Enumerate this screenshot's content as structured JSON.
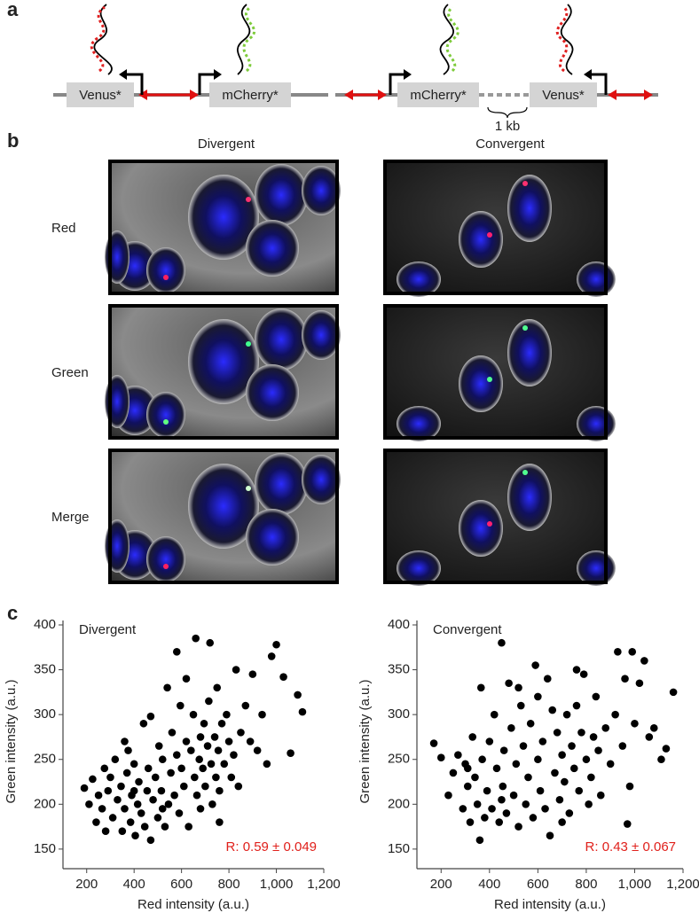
{
  "panel_labels": [
    "a",
    "b",
    "c"
  ],
  "diagram": {
    "divergent": [
      "Venus*",
      "mCherry*"
    ],
    "convergent": [
      "mCherry*",
      "Venus*"
    ],
    "spacer": "1 kb"
  },
  "images": {
    "columns": [
      "Divergent",
      "Convergent"
    ],
    "rows": [
      "Red",
      "Green",
      "Merge"
    ]
  },
  "chart_data": [
    {
      "type": "scatter",
      "title": "Divergent",
      "x_label": "Red intensity (a.u.)",
      "y_label": "Green intensity (a.u.)",
      "color": "#000000",
      "annotation": "R: 0.59 ± 0.049",
      "annotation_color": "#e0201b",
      "xlim": [
        100,
        1200
      ],
      "xticks": [
        200,
        400,
        600,
        800,
        {
          "value": 1000,
          "label": "1,000"
        },
        {
          "value": 1200,
          "label": "1,200"
        }
      ],
      "ylim": [
        140,
        400
      ],
      "yticks": [
        150,
        200,
        250,
        300,
        350,
        400
      ],
      "x": [
        190,
        210,
        225,
        240,
        250,
        265,
        275,
        290,
        300,
        310,
        320,
        330,
        345,
        350,
        360,
        370,
        375,
        385,
        390,
        400,
        405,
        415,
        420,
        430,
        440,
        445,
        455,
        460,
        470,
        480,
        490,
        500,
        505,
        515,
        520,
        530,
        540,
        545,
        555,
        560,
        570,
        580,
        590,
        595,
        600,
        610,
        620,
        630,
        640,
        650,
        655,
        660,
        665,
        675,
        680,
        690,
        695,
        700,
        710,
        715,
        720,
        725,
        730,
        740,
        745,
        750,
        755,
        760,
        770,
        780,
        790,
        800,
        810,
        820,
        830,
        840,
        850,
        870,
        890,
        900,
        920,
        940,
        960,
        980,
        1000,
        1030,
        1060,
        1090,
        1110,
        470,
        360,
        280,
        620,
        580,
        760,
        400,
        520,
        680
      ],
      "values": [
        218,
        200,
        228,
        180,
        210,
        195,
        240,
        215,
        230,
        185,
        250,
        205,
        220,
        170,
        195,
        235,
        260,
        180,
        210,
        245,
        165,
        200,
        225,
        190,
        290,
        175,
        215,
        240,
        160,
        205,
        230,
        185,
        265,
        215,
        250,
        175,
        330,
        200,
        235,
        280,
        210,
        255,
        190,
        310,
        240,
        220,
        270,
        175,
        260,
        300,
        230,
        385,
        210,
        250,
        275,
        240,
        290,
        220,
        265,
        315,
        380,
        245,
        200,
        275,
        230,
        330,
        260,
        215,
        290,
        245,
        300,
        270,
        230,
        255,
        350,
        220,
        280,
        310,
        270,
        345,
        260,
        300,
        245,
        365,
        378,
        342,
        257,
        322,
        303,
        298,
        270,
        170,
        340,
        370,
        180,
        215,
        195,
        195
      ]
    },
    {
      "type": "scatter",
      "title": "Convergent",
      "x_label": "Red intensity (a.u.)",
      "y_label": "Green intensity (a.u.)",
      "color": "#000000",
      "annotation": "R: 0.43 ± 0.067",
      "annotation_color": "#e0201b",
      "xlim": [
        100,
        1200
      ],
      "xticks": [
        200,
        400,
        600,
        800,
        {
          "value": 1000,
          "label": "1,000"
        },
        {
          "value": 1200,
          "label": "1,200"
        }
      ],
      "ylim": [
        140,
        400
      ],
      "yticks": [
        150,
        200,
        250,
        300,
        350,
        400
      ],
      "x": [
        170,
        200,
        230,
        250,
        270,
        290,
        300,
        310,
        320,
        330,
        340,
        350,
        360,
        365,
        370,
        380,
        390,
        400,
        410,
        420,
        430,
        440,
        450,
        455,
        460,
        470,
        480,
        490,
        500,
        510,
        520,
        530,
        540,
        550,
        560,
        570,
        580,
        590,
        600,
        610,
        620,
        630,
        640,
        650,
        660,
        670,
        680,
        690,
        700,
        710,
        720,
        730,
        740,
        750,
        760,
        770,
        780,
        790,
        800,
        810,
        820,
        830,
        840,
        850,
        860,
        880,
        900,
        920,
        930,
        950,
        960,
        970,
        980,
        990,
        1000,
        1020,
        1040,
        1060,
        1080,
        1110,
        1130,
        1160,
        310,
        520,
        700,
        450,
        600,
        760
      ],
      "values": [
        268,
        252,
        210,
        235,
        255,
        195,
        245,
        220,
        180,
        275,
        230,
        200,
        160,
        330,
        250,
        185,
        215,
        270,
        195,
        300,
        240,
        180,
        380,
        220,
        260,
        190,
        335,
        285,
        210,
        245,
        175,
        310,
        265,
        200,
        230,
        290,
        185,
        355,
        250,
        215,
        270,
        195,
        340,
        165,
        305,
        235,
        280,
        205,
        255,
        225,
        300,
        190,
        265,
        240,
        310,
        215,
        280,
        345,
        250,
        200,
        230,
        275,
        320,
        260,
        210,
        285,
        245,
        300,
        370,
        265,
        340,
        178,
        220,
        370,
        290,
        335,
        360,
        275,
        285,
        250,
        262,
        325,
        240,
        330,
        180,
        205,
        320,
        350
      ]
    }
  ]
}
